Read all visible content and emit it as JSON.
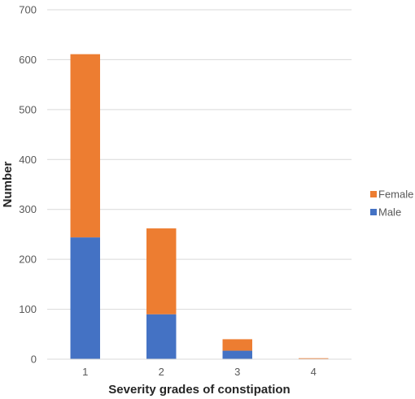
{
  "chart_data": {
    "type": "bar",
    "stacked": true,
    "categories": [
      "1",
      "2",
      "3",
      "4"
    ],
    "series": [
      {
        "name": "Male",
        "color": "#4472C4",
        "values": [
          244,
          90,
          17,
          0
        ]
      },
      {
        "name": "Female",
        "color": "#ED7D31",
        "values": [
          367,
          172,
          23,
          2
        ]
      }
    ],
    "title": "",
    "xlabel": "Severity grades of constipation",
    "ylabel": "Number",
    "ylim": [
      0,
      700
    ],
    "yticks": [
      "0",
      "100",
      "200",
      "300",
      "400",
      "500",
      "600",
      "700"
    ],
    "grid": true,
    "legend_position": "right",
    "legend_order": [
      "Female",
      "Male"
    ]
  }
}
